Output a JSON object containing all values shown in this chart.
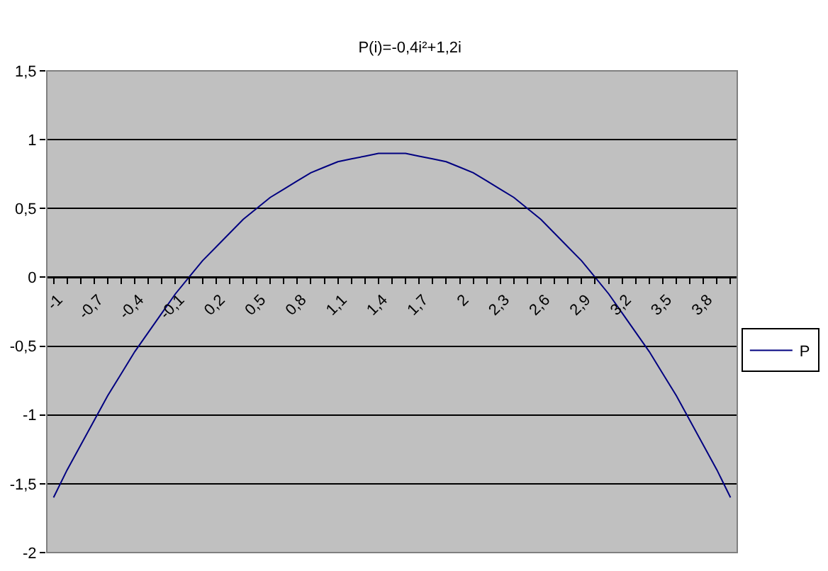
{
  "chart_data": {
    "type": "line",
    "title": "P(i)=-0,4i²+1,2i",
    "categories": [
      "-1",
      null,
      null,
      "-0,7",
      null,
      null,
      "-0,4",
      null,
      null,
      "-0,1",
      null,
      null,
      "0,2",
      null,
      null,
      "0,5",
      null,
      null,
      "0,8",
      null,
      null,
      "1,1",
      null,
      null,
      "1,4",
      null,
      null,
      "1,7",
      null,
      null,
      "2",
      null,
      null,
      "2,3",
      null,
      null,
      "2,6",
      null,
      null,
      "2,9",
      null,
      null,
      "3,2",
      null,
      null,
      "3,5",
      null,
      null,
      "3,8",
      null,
      null
    ],
    "series": [
      {
        "name": "P",
        "color": "#000080",
        "values": [
          -1.6,
          -1.4,
          -1.22,
          -1.04,
          -0.86,
          -0.7,
          -0.54,
          -0.4,
          -0.26,
          -0.12,
          0,
          0.12,
          0.22,
          0.32,
          0.42,
          0.5,
          0.58,
          0.64,
          0.7,
          0.76,
          0.8,
          0.84,
          0.86,
          0.88,
          0.9,
          0.9,
          0.9,
          0.88,
          0.86,
          0.84,
          0.8,
          0.76,
          0.7,
          0.64,
          0.58,
          0.5,
          0.42,
          0.32,
          0.22,
          0.12,
          0,
          -0.12,
          -0.26,
          -0.4,
          -0.54,
          -0.7,
          -0.86,
          -1.04,
          -1.22,
          -1.4,
          -1.6
        ]
      }
    ],
    "ylim": [
      -2,
      1.5
    ],
    "yticks": [
      {
        "value": -2,
        "label": "-2"
      },
      {
        "value": -1.5,
        "label": "-1,5"
      },
      {
        "value": -1,
        "label": "-1"
      },
      {
        "value": -0.5,
        "label": "-0,5"
      },
      {
        "value": 0,
        "label": "0"
      },
      {
        "value": 0.5,
        "label": "0,5"
      },
      {
        "value": 1,
        "label": "1"
      },
      {
        "value": 1.5,
        "label": "1,5"
      }
    ],
    "grid": "y",
    "legend": "right"
  }
}
